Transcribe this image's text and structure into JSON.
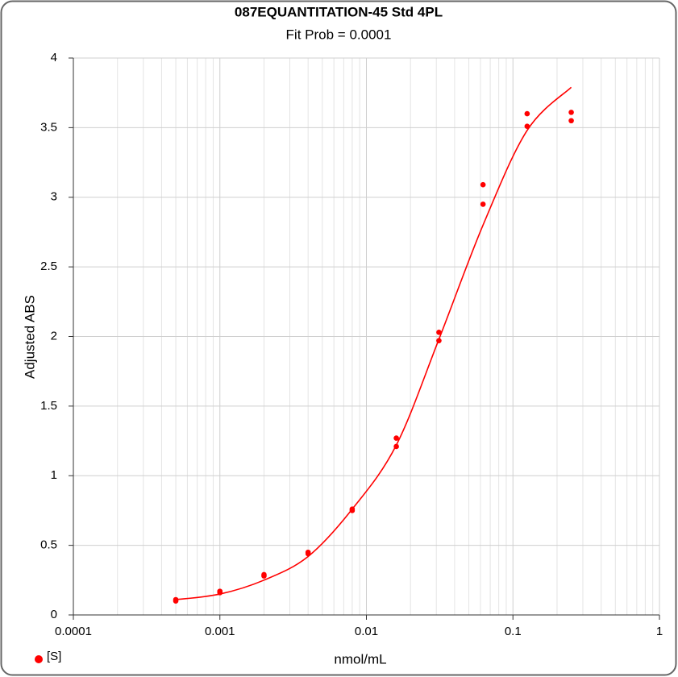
{
  "chart_data": {
    "type": "scatter",
    "title": "087EQUANTITATION-45 Std 4PL",
    "subtitle": "Fit Prob = 0.0001",
    "x_label": "nmol/mL",
    "y_label": "Adjusted ABS",
    "x": [
      0.0005,
      0.0005,
      0.001,
      0.001,
      0.002,
      0.002,
      0.004,
      0.004,
      0.008,
      0.008,
      0.016,
      0.016,
      0.03125,
      0.03125,
      0.0625,
      0.0625,
      0.125,
      0.125,
      0.25,
      0.25
    ],
    "series": [
      {
        "name": "[S]",
        "color": "#ff0000",
        "values": [
          0.1,
          0.11,
          0.16,
          0.17,
          0.29,
          0.28,
          0.45,
          0.44,
          0.75,
          0.76,
          1.27,
          1.21,
          2.03,
          1.97,
          3.09,
          2.95,
          3.6,
          3.51,
          3.61,
          3.55
        ]
      }
    ],
    "fit": {
      "color": "#ff0000",
      "x": [
        0.0005,
        0.001,
        0.002,
        0.004,
        0.008,
        0.016,
        0.03125,
        0.0625,
        0.125,
        0.25
      ],
      "values": [
        0.11,
        0.15,
        0.25,
        0.42,
        0.76,
        1.22,
        1.98,
        2.8,
        3.48,
        3.79
      ]
    },
    "xlim": [
      0.0001,
      1
    ],
    "xticks": [
      0.0001,
      0.001,
      0.01,
      0.1,
      1
    ],
    "xlog": true,
    "ylim": [
      0,
      4
    ],
    "yticks": [
      0,
      0.5,
      1,
      1.5,
      2,
      2.5,
      3,
      3.5,
      4
    ],
    "grid": true,
    "legend": "bottom-left"
  }
}
